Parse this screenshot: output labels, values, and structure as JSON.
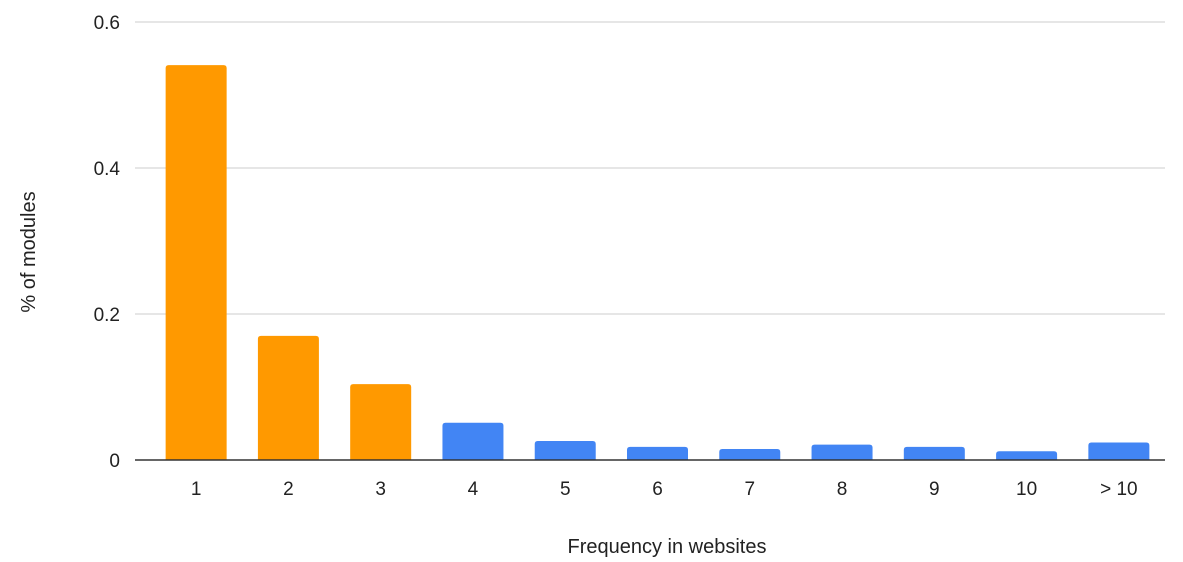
{
  "chart_data": {
    "type": "bar",
    "title": "",
    "xlabel": "Frequency in websites",
    "ylabel": "% of modules",
    "categories": [
      "1",
      "2",
      "3",
      "4",
      "5",
      "6",
      "7",
      "8",
      "9",
      "10",
      "> 10"
    ],
    "values": [
      0.541,
      0.17,
      0.104,
      0.051,
      0.026,
      0.018,
      0.015,
      0.021,
      0.018,
      0.012,
      0.024
    ],
    "colors": [
      "#FF9900",
      "#FF9900",
      "#FF9900",
      "#4285F4",
      "#4285F4",
      "#4285F4",
      "#4285F4",
      "#4285F4",
      "#4285F4",
      "#4285F4",
      "#4285F4"
    ],
    "ylim": [
      0,
      0.6
    ],
    "yticks": [
      "0",
      "0.2",
      "0.4",
      "0.6"
    ],
    "grid": true,
    "legend": "none"
  }
}
